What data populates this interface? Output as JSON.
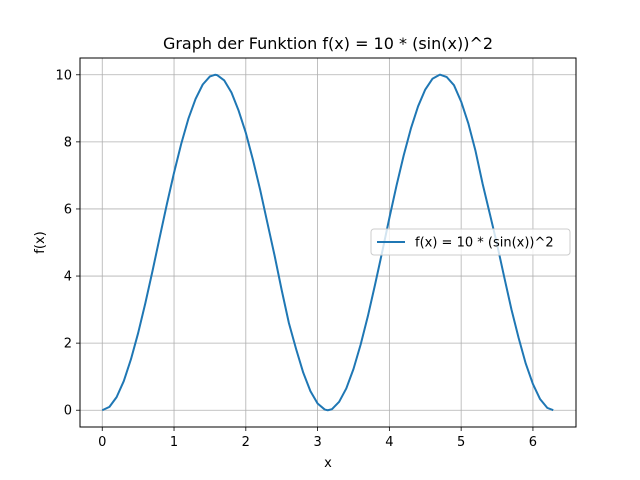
{
  "chart_data": {
    "type": "line",
    "title": "Graph der Funktion f(x) = 10 * (sin(x))^2",
    "xlabel": "x",
    "ylabel": "f(x)",
    "xlim": [
      -0.31,
      6.6
    ],
    "ylim": [
      -0.5,
      10.5
    ],
    "xticks": [
      0,
      1,
      2,
      3,
      4,
      5,
      6
    ],
    "yticks": [
      0,
      2,
      4,
      6,
      8,
      10
    ],
    "grid": true,
    "legend_position": "center-right",
    "series": [
      {
        "name": "f(x) = 10 * (sin(x))^2",
        "color": "#1f77b4",
        "x": [
          0.0,
          0.1,
          0.2,
          0.3,
          0.4,
          0.5,
          0.6,
          0.7,
          0.8,
          0.9,
          1.0,
          1.1,
          1.2,
          1.3,
          1.4,
          1.5,
          1.5708,
          1.6,
          1.7,
          1.8,
          1.9,
          2.0,
          2.1,
          2.2,
          2.3,
          2.4,
          2.5,
          2.6,
          2.7,
          2.8,
          2.9,
          3.0,
          3.1,
          3.1416,
          3.2,
          3.3,
          3.4,
          3.5,
          3.6,
          3.7,
          3.8,
          3.9,
          4.0,
          4.1,
          4.2,
          4.3,
          4.4,
          4.5,
          4.6,
          4.7,
          4.7124,
          4.8,
          4.9,
          5.0,
          5.1,
          5.2,
          5.3,
          5.4,
          5.5,
          5.6,
          5.7,
          5.8,
          5.9,
          6.0,
          6.1,
          6.2,
          6.2832
        ],
        "y": [
          0.0,
          0.1,
          0.39,
          0.87,
          1.52,
          2.3,
          3.19,
          4.15,
          5.15,
          6.14,
          7.08,
          7.94,
          8.69,
          9.28,
          9.71,
          9.95,
          10.0,
          9.99,
          9.83,
          9.47,
          8.93,
          8.27,
          7.46,
          6.57,
          5.59,
          4.62,
          3.58,
          2.6,
          1.83,
          1.12,
          0.57,
          0.2,
          0.02,
          0.0,
          0.03,
          0.25,
          0.65,
          1.23,
          1.96,
          2.8,
          3.74,
          4.72,
          5.73,
          6.7,
          7.6,
          8.4,
          9.06,
          9.56,
          9.88,
          9.9996,
          10.0,
          9.93,
          9.69,
          9.2,
          8.55,
          7.73,
          6.74,
          5.85,
          4.95,
          3.97,
          3.01,
          2.16,
          1.39,
          0.78,
          0.33,
          0.07,
          0.0
        ]
      }
    ]
  }
}
